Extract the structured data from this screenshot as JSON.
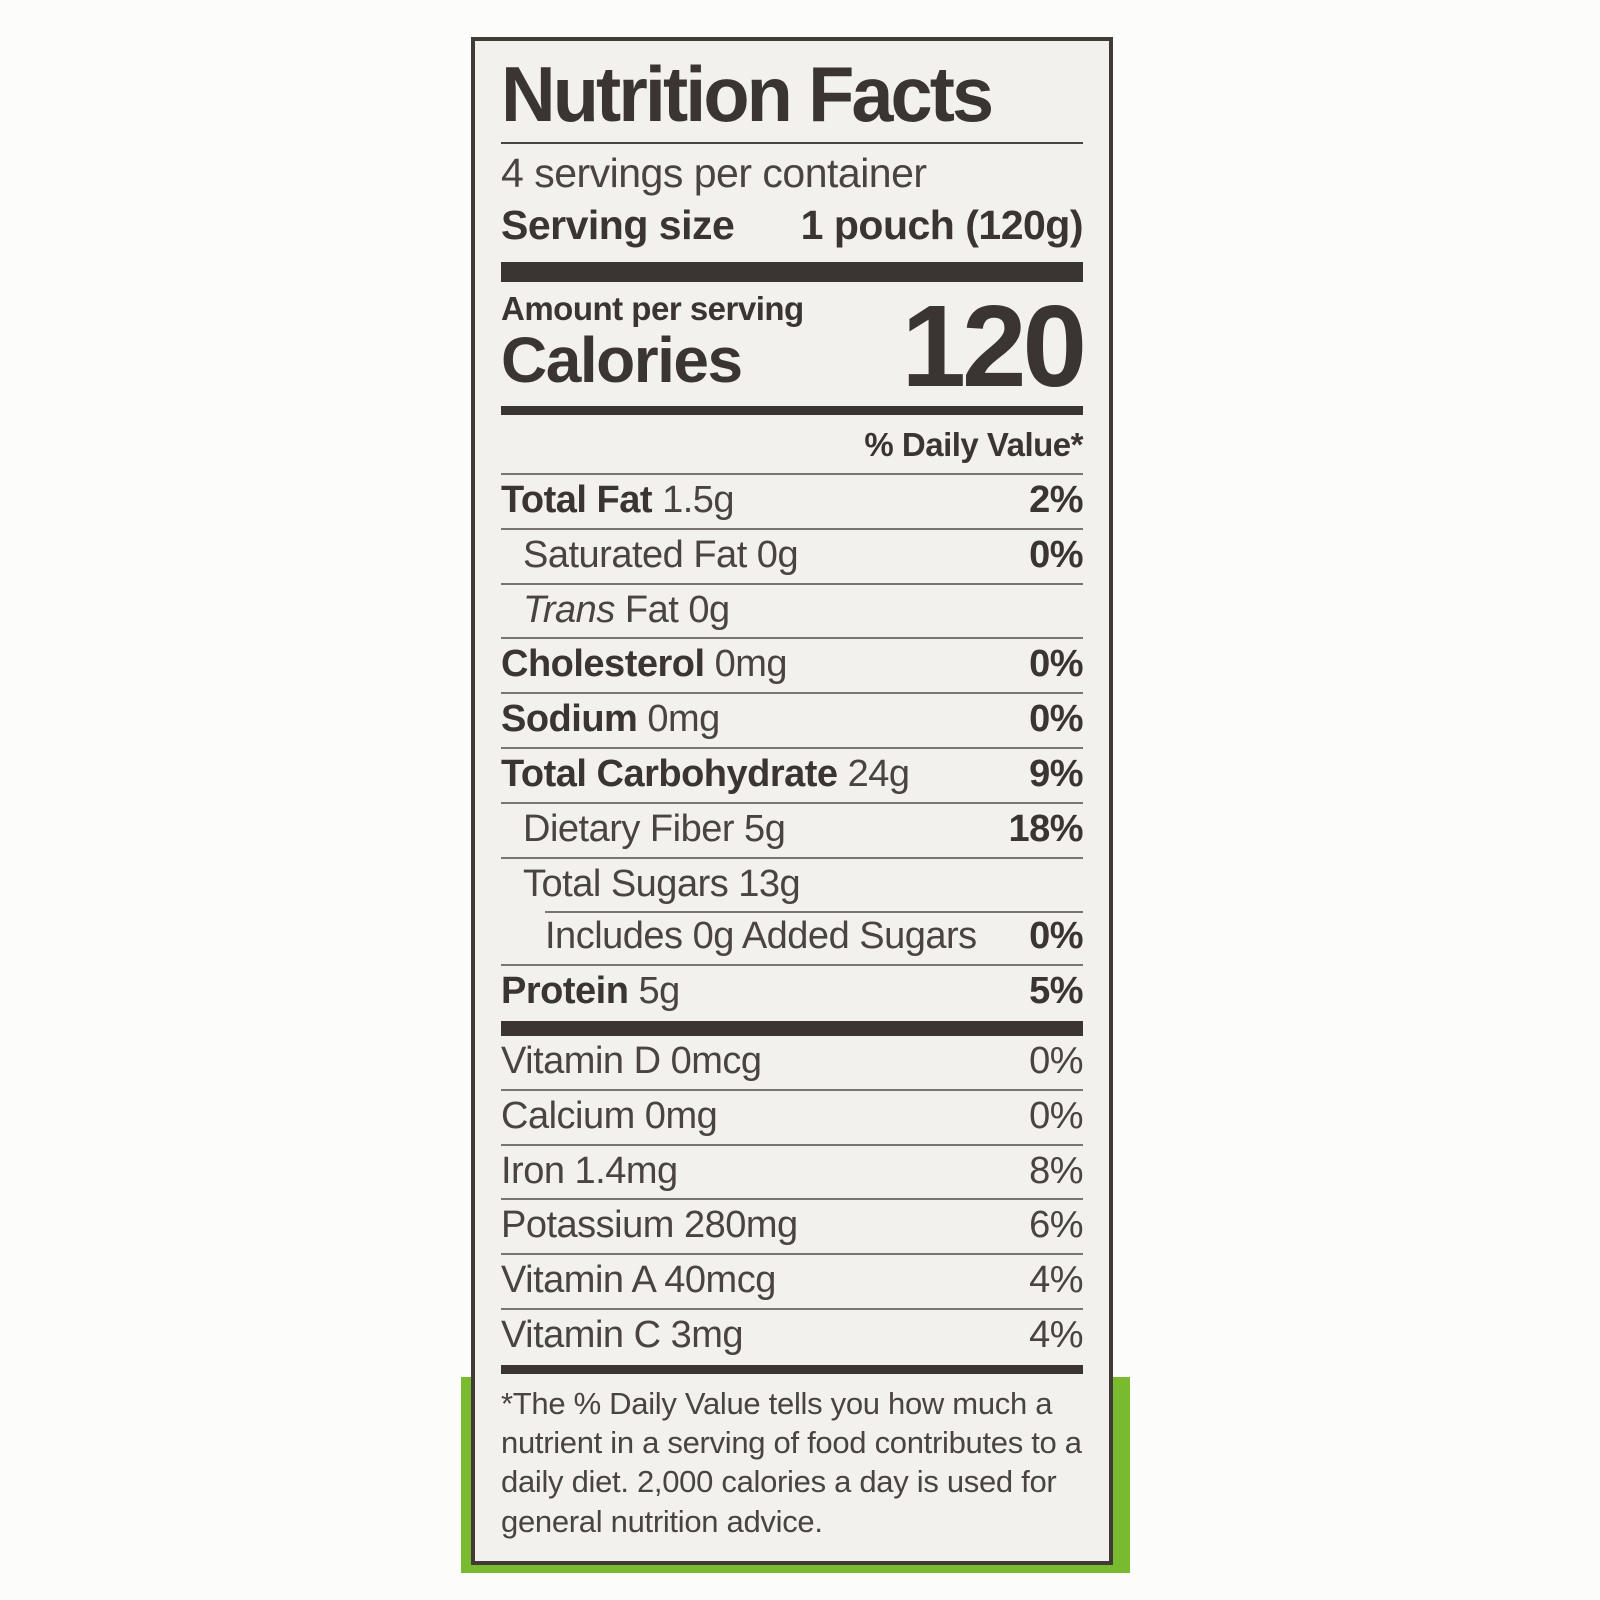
{
  "label": {
    "title": "Nutrition Facts",
    "servings_per_container": "4 servings per container",
    "serving_size_label": "Serving size",
    "serving_size_value": "1 pouch (120g)",
    "amount_per_serving": "Amount per serving",
    "calories_label": "Calories",
    "calories_value": "120",
    "daily_value_header": "% Daily Value*",
    "nutrients": [
      {
        "name": "Total Fat",
        "amount": "1.5g",
        "dv": "2%",
        "bold": true,
        "indent": 0,
        "dv_bold": true
      },
      {
        "name": "Saturated Fat",
        "amount": "0g",
        "dv": "0%",
        "bold": false,
        "indent": 1,
        "dv_bold": true
      },
      {
        "name_italic": "Trans",
        "name": "Fat",
        "amount": "0g",
        "dv": "",
        "bold": false,
        "indent": 1
      },
      {
        "name": "Cholesterol",
        "amount": "0mg",
        "dv": "0%",
        "bold": true,
        "indent": 0,
        "dv_bold": true
      },
      {
        "name": "Sodium",
        "amount": "0mg",
        "dv": "0%",
        "bold": true,
        "indent": 0,
        "dv_bold": true
      },
      {
        "name": "Total Carbohydrate",
        "amount": "24g",
        "dv": "9%",
        "bold": true,
        "indent": 0,
        "dv_bold": true
      },
      {
        "name": "Dietary Fiber",
        "amount": "5g",
        "dv": "18%",
        "bold": false,
        "indent": 1,
        "dv_bold": true
      },
      {
        "name": "Total Sugars",
        "amount": "13g",
        "dv": "",
        "bold": false,
        "indent": 1
      },
      {
        "name": "Includes 0g Added Sugars",
        "amount": "",
        "dv": "0%",
        "bold": false,
        "indent": 2,
        "dv_bold": true,
        "sep_indent": true
      },
      {
        "name": "Protein",
        "amount": "5g",
        "dv": "5%",
        "bold": true,
        "indent": 0,
        "dv_bold": true
      }
    ],
    "micronutrients": [
      {
        "name": "Vitamin D",
        "amount": "0mcg",
        "dv": "0%"
      },
      {
        "name": "Calcium",
        "amount": "0mg",
        "dv": "0%"
      },
      {
        "name": "Iron",
        "amount": "1.4mg",
        "dv": "8%"
      },
      {
        "name": "Potassium",
        "amount": "280mg",
        "dv": "6%"
      },
      {
        "name": "Vitamin A",
        "amount": "40mcg",
        "dv": "4%"
      },
      {
        "name": "Vitamin C",
        "amount": "3mg",
        "dv": "4%"
      }
    ],
    "footnote": "*The % Daily Value tells you how much a nutrient in a serving of food contributes to a daily diet. 2,000 calories a day is used for general nutrition advice."
  },
  "colors": {
    "accent_green": "#79ba2e",
    "label_background": "#f2f1ee",
    "ink": "#3a3532",
    "page_background": "#fcfcfb"
  }
}
